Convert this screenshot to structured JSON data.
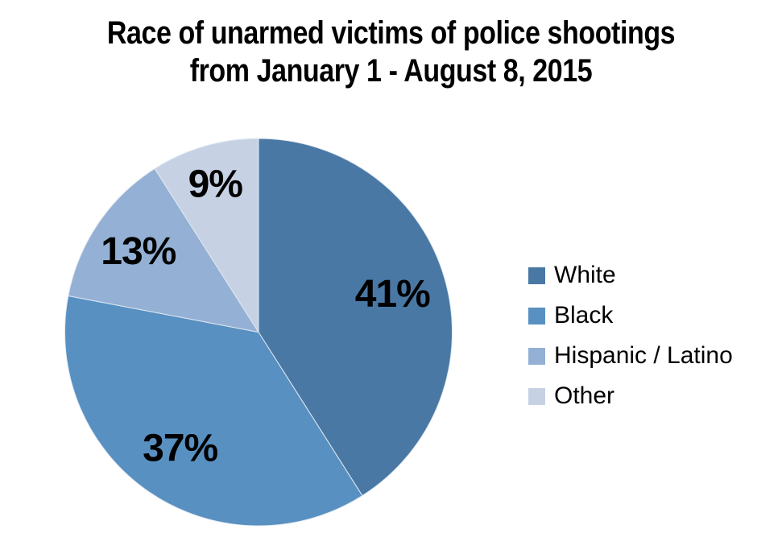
{
  "title": {
    "line1": "Race of unarmed victims of police shootings",
    "line2": "from January 1 - August 8, 2015"
  },
  "chart_data": {
    "type": "pie",
    "title": "Race of unarmed victims of police shootings from January 1 - August 8, 2015",
    "categories": [
      "White",
      "Black",
      "Hispanic / Latino",
      "Other"
    ],
    "values": [
      41,
      37,
      13,
      9
    ],
    "unit": "%",
    "data_labels": [
      "41%",
      "37%",
      "13%",
      "9%"
    ],
    "colors": [
      "#4A78A4",
      "#5890C1",
      "#94B0D4",
      "#C6D2E4"
    ],
    "slice_border_color": "#DFE8F2",
    "label_color": "#000000",
    "legend_position": "right",
    "start_angle_deg": 0,
    "direction": "clockwise",
    "label_radius_frac": [
      0.72,
      0.72,
      0.75,
      0.8
    ],
    "background": "#FFFFFF"
  }
}
